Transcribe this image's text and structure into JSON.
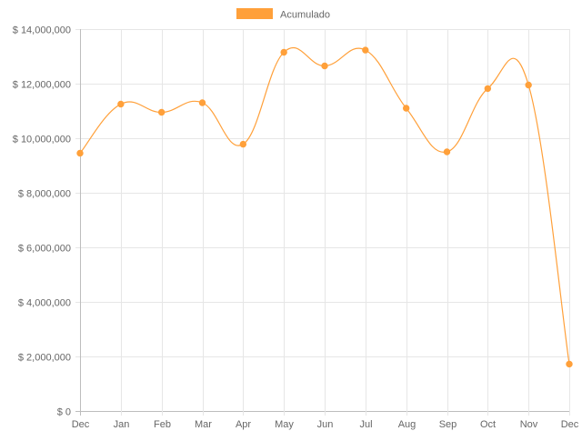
{
  "chart_data": {
    "type": "line",
    "legend": {
      "position": "top-center",
      "label": "Acumulado"
    },
    "categories": [
      "Dec",
      "Jan",
      "Feb",
      "Mar",
      "Apr",
      "May",
      "Jun",
      "Jul",
      "Aug",
      "Sep",
      "Oct",
      "Nov",
      "Dec"
    ],
    "series": [
      {
        "name": "Acumulado",
        "color": "#FFA03A",
        "values": [
          9450000,
          11250000,
          10950000,
          11300000,
          9780000,
          13150000,
          12650000,
          13230000,
          11100000,
          9500000,
          11820000,
          11950000,
          1720000
        ]
      }
    ],
    "ylim": [
      0,
      14000000
    ],
    "y_ticks": [
      0,
      2000000,
      4000000,
      6000000,
      8000000,
      10000000,
      12000000,
      14000000
    ],
    "y_tick_labels": [
      "$ 0",
      "$ 2,000,000",
      "$ 4,000,000",
      "$ 6,000,000",
      "$ 8,000,000",
      "$ 10,000,000",
      "$ 12,000,000",
      "$ 14,000,000"
    ],
    "grid": true,
    "title": "",
    "xlabel": "",
    "ylabel": ""
  }
}
